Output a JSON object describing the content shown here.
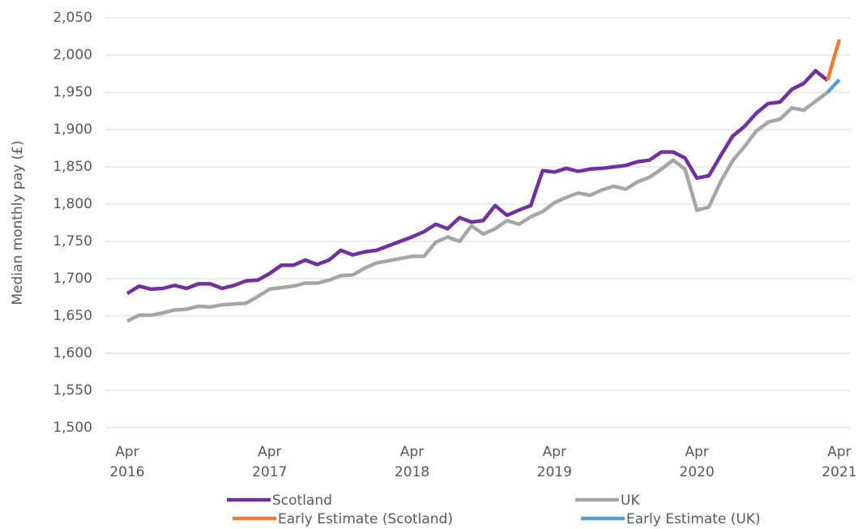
{
  "chart_data": {
    "type": "line",
    "y_label": "Median monthly pay (£)",
    "categories": [
      "Apr 2016",
      null,
      null,
      null,
      null,
      null,
      null,
      null,
      null,
      null,
      null,
      null,
      "Apr 2017",
      null,
      null,
      null,
      null,
      null,
      null,
      null,
      null,
      null,
      null,
      null,
      "Apr 2018",
      null,
      null,
      null,
      null,
      null,
      null,
      null,
      null,
      null,
      null,
      null,
      "Apr 2019",
      null,
      null,
      null,
      null,
      null,
      null,
      null,
      null,
      null,
      null,
      null,
      "Apr 2020",
      null,
      null,
      null,
      null,
      null,
      null,
      null,
      null,
      null,
      null,
      null,
      "Apr 2021"
    ],
    "series": [
      {
        "name": "Scotland",
        "color": "#7030a0",
        "values": [
          1680,
          1690,
          1686,
          1687,
          1691,
          1687,
          1693,
          1693,
          1687,
          1691,
          1697,
          1698,
          1707,
          1718,
          1718,
          1725,
          1719,
          1725,
          1738,
          1732,
          1736,
          1738,
          1744,
          1750,
          1756,
          1763,
          1773,
          1767,
          1782,
          1776,
          1778,
          1798,
          1785,
          1792,
          1798,
          1845,
          1843,
          1848,
          1844,
          1847,
          1848,
          1850,
          1852,
          1857,
          1859,
          1870,
          1870,
          1862,
          1835,
          1838,
          1865,
          1891,
          1904,
          1922,
          1935,
          1937,
          1954,
          1962,
          1979,
          1966,
          null
        ]
      },
      {
        "name": "UK",
        "color": "#a6a6a6",
        "values": [
          1643,
          1651,
          1651,
          1654,
          1658,
          1659,
          1663,
          1662,
          1665,
          1666,
          1667,
          1676,
          1686,
          1688,
          1690,
          1694,
          1694,
          1698,
          1704,
          1705,
          1714,
          1721,
          1724,
          1727,
          1730,
          1730,
          1749,
          1756,
          1750,
          1771,
          1760,
          1767,
          1778,
          1773,
          1783,
          1790,
          1802,
          1809,
          1815,
          1812,
          1819,
          1824,
          1820,
          1830,
          1836,
          1847,
          1859,
          1847,
          1792,
          1796,
          1830,
          1858,
          1877,
          1898,
          1910,
          1914,
          1929,
          1926,
          1938,
          1950,
          null
        ]
      },
      {
        "name": "Early Estimate (Scotland)",
        "color": "#ed7d31",
        "values": [
          null,
          null,
          null,
          null,
          null,
          null,
          null,
          null,
          null,
          null,
          null,
          null,
          null,
          null,
          null,
          null,
          null,
          null,
          null,
          null,
          null,
          null,
          null,
          null,
          null,
          null,
          null,
          null,
          null,
          null,
          null,
          null,
          null,
          null,
          null,
          null,
          null,
          null,
          null,
          null,
          null,
          null,
          null,
          null,
          null,
          null,
          null,
          null,
          null,
          null,
          null,
          null,
          null,
          null,
          null,
          null,
          null,
          null,
          null,
          1966,
          2021
        ]
      },
      {
        "name": "Early Estimate (UK)",
        "color": "#5b9bd5",
        "values": [
          null,
          null,
          null,
          null,
          null,
          null,
          null,
          null,
          null,
          null,
          null,
          null,
          null,
          null,
          null,
          null,
          null,
          null,
          null,
          null,
          null,
          null,
          null,
          null,
          null,
          null,
          null,
          null,
          null,
          null,
          null,
          null,
          null,
          null,
          null,
          null,
          null,
          null,
          null,
          null,
          null,
          null,
          null,
          null,
          null,
          null,
          null,
          null,
          null,
          null,
          null,
          null,
          null,
          null,
          null,
          null,
          null,
          null,
          null,
          1950,
          1967
        ]
      }
    ],
    "ylim": [
      1500,
      2050
    ],
    "yticks": [
      {
        "value": 1500,
        "label": "1,500"
      },
      {
        "value": 1550,
        "label": "1,550"
      },
      {
        "value": 1600,
        "label": "1,600"
      },
      {
        "value": 1650,
        "label": "1,650"
      },
      {
        "value": 1700,
        "label": "1,700"
      },
      {
        "value": 1750,
        "label": "1,750"
      },
      {
        "value": 1800,
        "label": "1,800"
      },
      {
        "value": 1850,
        "label": "1,850"
      },
      {
        "value": 1900,
        "label": "1,900"
      },
      {
        "value": 1950,
        "label": "1,950"
      },
      {
        "value": 2000,
        "label": "2,000"
      },
      {
        "value": 2050,
        "label": "2,050"
      }
    ],
    "grid": true
  }
}
